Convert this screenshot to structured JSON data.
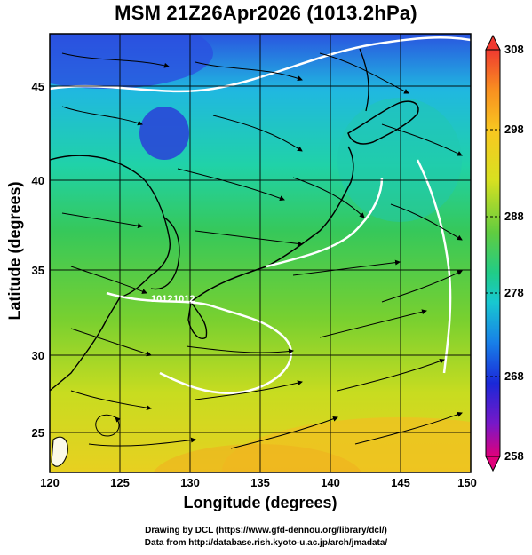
{
  "title": "MSM 21Z26Apr2026 (1013.2hPa)",
  "axes": {
    "xlabel": "Longitude (degrees)",
    "ylabel": "Latitude  (degrees)",
    "xticks": [
      "120",
      "125",
      "130",
      "135",
      "140",
      "145",
      "150"
    ],
    "yticks": [
      "25",
      "30",
      "35",
      "40",
      "45"
    ]
  },
  "colorbar": {
    "ticks": [
      "308",
      "298",
      "288",
      "278",
      "268",
      "258"
    ],
    "colors": [
      "#e0007a",
      "#7a1cc8",
      "#1a1ad8",
      "#1a6ee8",
      "#18c0e0",
      "#18d8a0",
      "#30c860",
      "#7ad030",
      "#d8e020",
      "#f8c020",
      "#f89020",
      "#f04030"
    ]
  },
  "contour_labels": [
    "1012",
    "1012"
  ],
  "credits": {
    "line1": "Drawing by DCL (https://www.gfd-dennou.org/library/dcl/)",
    "line2": "Data from http://database.rish.kyoto-u.ac.jp/arch/jmadata/"
  },
  "chart_data": {
    "type": "heatmap",
    "title": "MSM 21Z26Apr2026 (1013.2hPa)",
    "xlabel": "Longitude (degrees)",
    "ylabel": "Latitude  (degrees)",
    "xlim": [
      120,
      150
    ],
    "ylim": [
      22.4,
      47.6
    ],
    "color_range": [
      258,
      308
    ],
    "grid": true,
    "overlays": [
      "streamlines",
      "pressure contours",
      "coastlines"
    ]
  }
}
